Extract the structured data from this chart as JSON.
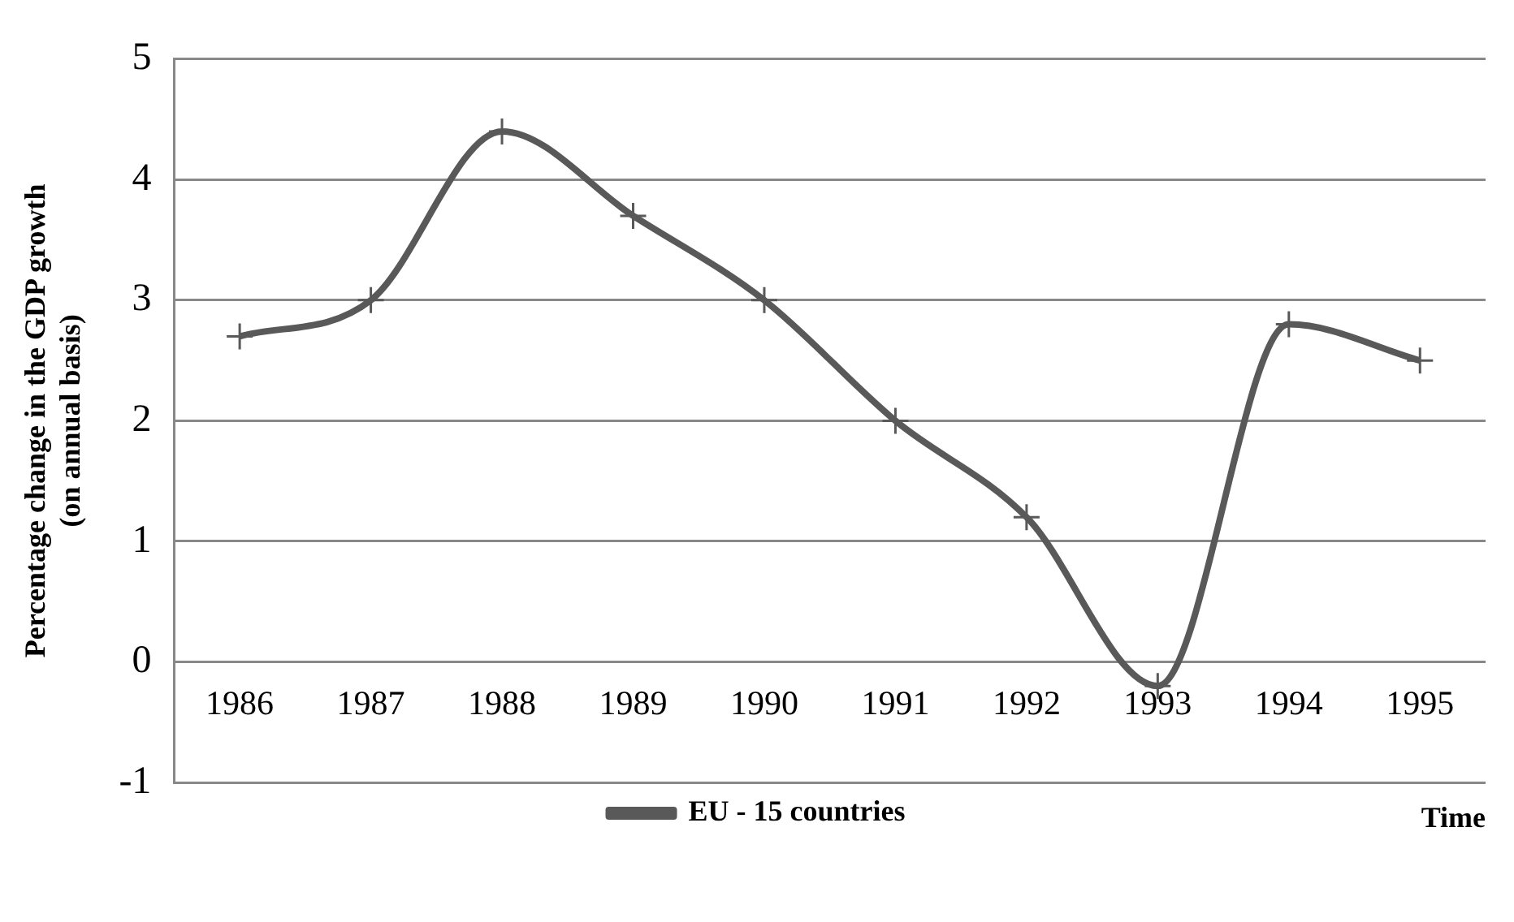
{
  "chart_data": {
    "type": "line",
    "xlabel": "Time",
    "ylabel": "Percentage change in the GDP growth\n(on annual basis)",
    "categories": [
      "1986",
      "1987",
      "1988",
      "1989",
      "1990",
      "1991",
      "1992",
      "1993",
      "1994",
      "1995"
    ],
    "series": [
      {
        "name": "EU - 15 countries",
        "color": "#595959",
        "values": [
          2.7,
          3.0,
          4.4,
          3.7,
          3.0,
          2.0,
          1.2,
          -0.2,
          2.8,
          2.5
        ]
      }
    ],
    "ylim": [
      -1,
      5
    ],
    "yticks": [
      -1,
      0,
      1,
      2,
      3,
      4,
      5
    ],
    "grid": "y",
    "legend": "bottom",
    "marker": "cross",
    "line_style": "solid"
  }
}
